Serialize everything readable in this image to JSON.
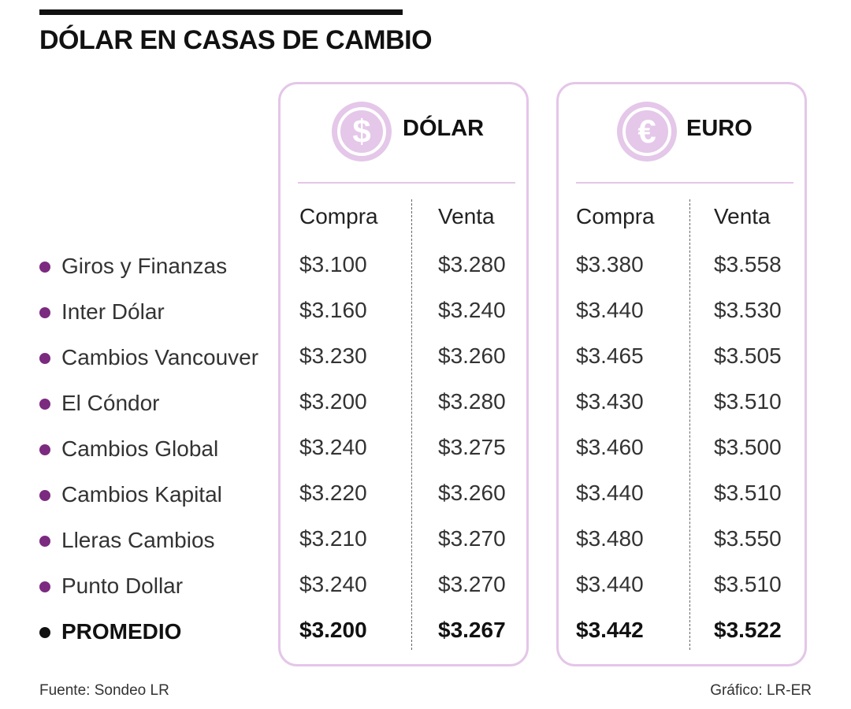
{
  "title": "DÓLAR EN CASAS DE CAMBIO",
  "currencies": {
    "dolar": {
      "name": "DÓLAR",
      "icon": "dollar-icon",
      "symbol": "$"
    },
    "euro": {
      "name": "EURO",
      "icon": "euro-icon",
      "symbol": "€"
    }
  },
  "column_labels": {
    "buy": "Compra",
    "sell": "Venta"
  },
  "colors": {
    "accent_purple": "#7b2a80",
    "panel_border": "#e4c6e8",
    "coin_fill": "#e4c7e9"
  },
  "chart_data": {
    "type": "table",
    "title": "DÓLAR EN CASAS DE CAMBIO",
    "columns": [
      "Compra",
      "Venta",
      "Compra",
      "Venta"
    ],
    "column_groups": [
      "DÓLAR",
      "DÓLAR",
      "EURO",
      "EURO"
    ],
    "rows": [
      {
        "label": "Giros y Finanzas",
        "values": [
          "$3.100",
          "$3.280",
          "$3.380",
          "$3.558"
        ]
      },
      {
        "label": "Inter Dólar",
        "values": [
          "$3.160",
          "$3.240",
          "$3.440",
          "$3.530"
        ]
      },
      {
        "label": "Cambios Vancouver",
        "values": [
          "$3.230",
          "$3.260",
          "$3.465",
          "$3.505"
        ]
      },
      {
        "label": "El Cóndor",
        "values": [
          "$3.200",
          "$3.280",
          "$3.430",
          "$3.510"
        ]
      },
      {
        "label": "Cambios Global",
        "values": [
          "$3.240",
          "$3.275",
          "$3.460",
          "$3.500"
        ]
      },
      {
        "label": "Cambios Kapital",
        "values": [
          "$3.220",
          "$3.260",
          "$3.440",
          "$3.510"
        ]
      },
      {
        "label": "Lleras Cambios",
        "values": [
          "$3.210",
          "$3.270",
          "$3.480",
          "$3.550"
        ]
      },
      {
        "label": "Punto Dollar",
        "values": [
          "$3.240",
          "$3.270",
          "$3.440",
          "$3.510"
        ]
      },
      {
        "label": "PROMEDIO",
        "values": [
          "$3.200",
          "$3.267",
          "$3.442",
          "$3.522"
        ]
      }
    ]
  },
  "footer": {
    "source": "Fuente: Sondeo LR",
    "credit": "Gráfico: LR-ER"
  }
}
